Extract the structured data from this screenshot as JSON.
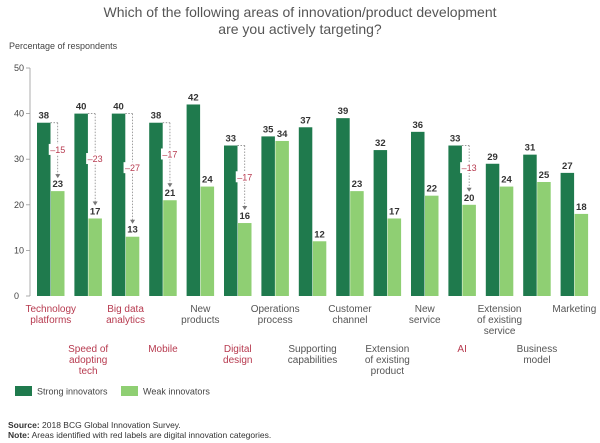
{
  "chart_data": {
    "type": "bar",
    "title_lines": [
      "Which of the following areas of innovation/product development",
      "are you actively targeting?"
    ],
    "ylabel": "Percentage of respondents",
    "ylim": [
      0,
      50
    ],
    "yticks": [
      "0",
      "10",
      "20",
      "30",
      "40",
      "50"
    ],
    "categories": [
      {
        "lines": [
          "Technology",
          "platforms"
        ],
        "digital": true,
        "row": "top"
      },
      {
        "lines": [
          "Speed of",
          "adopting",
          "tech"
        ],
        "digital": true,
        "row": "bottom"
      },
      {
        "lines": [
          "Big data",
          "analytics"
        ],
        "digital": true,
        "row": "top"
      },
      {
        "lines": [
          "Mobile"
        ],
        "digital": true,
        "row": "bottom"
      },
      {
        "lines": [
          "New",
          "products"
        ],
        "digital": false,
        "row": "top"
      },
      {
        "lines": [
          "Digital",
          "design"
        ],
        "digital": true,
        "row": "bottom"
      },
      {
        "lines": [
          "Operations",
          "process"
        ],
        "digital": false,
        "row": "top"
      },
      {
        "lines": [
          "Supporting",
          "capabilities"
        ],
        "digital": false,
        "row": "bottom"
      },
      {
        "lines": [
          "Customer",
          "channel"
        ],
        "digital": false,
        "row": "top"
      },
      {
        "lines": [
          "Extension",
          "of existing",
          "product"
        ],
        "digital": false,
        "row": "bottom"
      },
      {
        "lines": [
          "New",
          "service"
        ],
        "digital": false,
        "row": "top"
      },
      {
        "lines": [
          "AI"
        ],
        "digital": true,
        "row": "bottom"
      },
      {
        "lines": [
          "Extension",
          "of existing",
          "service"
        ],
        "digital": false,
        "row": "top"
      },
      {
        "lines": [
          "Business",
          "model"
        ],
        "digital": false,
        "row": "bottom"
      },
      {
        "lines": [
          "Marketing"
        ],
        "digital": false,
        "row": "top"
      }
    ],
    "series": [
      {
        "name": "Strong innovators",
        "color": "#1f7a4d",
        "values": [
          38,
          40,
          40,
          38,
          42,
          33,
          35,
          37,
          39,
          32,
          36,
          33,
          29,
          31,
          27
        ]
      },
      {
        "name": "Weak innovators",
        "color": "#8fcf73",
        "values": [
          23,
          17,
          13,
          21,
          24,
          16,
          34,
          12,
          23,
          17,
          22,
          20,
          24,
          25,
          18
        ]
      }
    ],
    "gap_labels": [
      {
        "index": 0,
        "label": "–15"
      },
      {
        "index": 1,
        "label": "–23"
      },
      {
        "index": 2,
        "label": "–27"
      },
      {
        "index": 3,
        "label": "–17"
      },
      {
        "index": 5,
        "label": "–17"
      },
      {
        "index": 11,
        "label": "–13"
      }
    ],
    "accent_color": "#b73a4f",
    "legend_position": "bottom-left"
  },
  "footnote": {
    "source_label": "Source:",
    "source_text": "2018 BCG Global Innovation Survey.",
    "note_label": "Note:",
    "note_text": "Areas identified with red labels are digital innovation categories."
  }
}
